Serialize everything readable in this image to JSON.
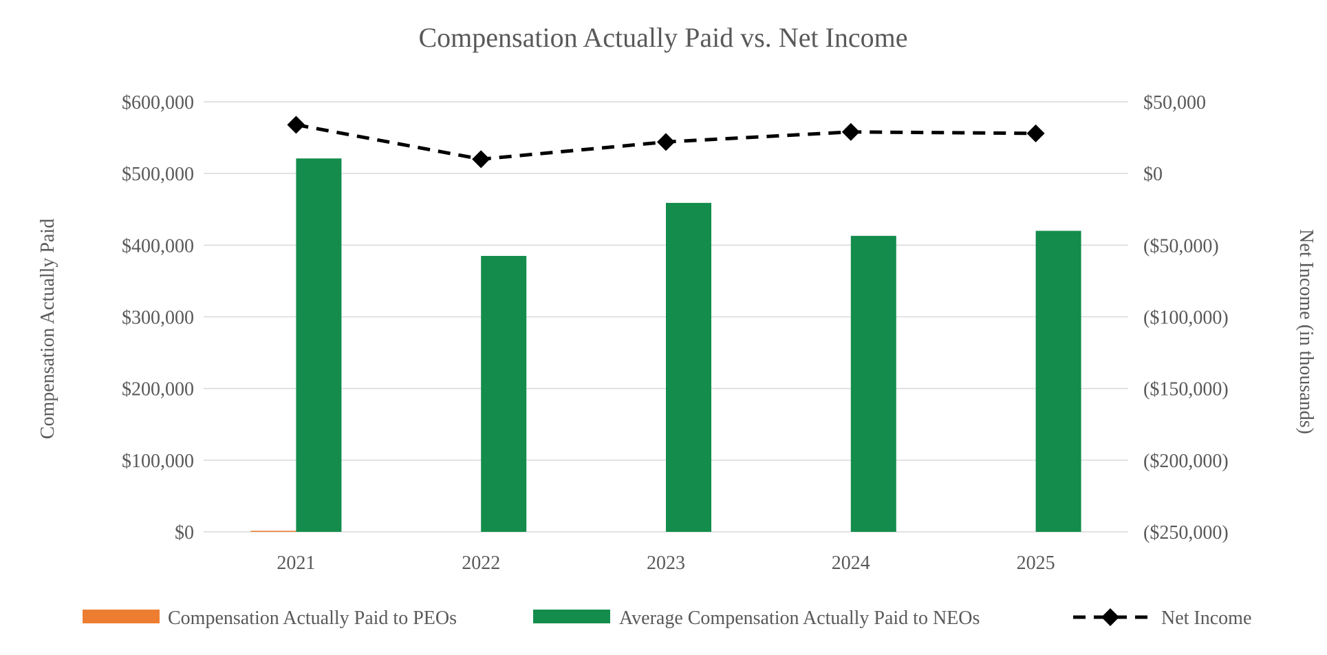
{
  "chart_data": {
    "type": "bar",
    "title": "Compensation Actually Paid vs. Net Income",
    "categories": [
      "2021",
      "2022",
      "2023",
      "2024",
      "2025"
    ],
    "ylabel": "Compensation Actually Paid",
    "y2label": "Net Income (in thousands)",
    "ylim": [
      0,
      600000
    ],
    "y2lim": [
      -250000,
      50000
    ],
    "yticks": [
      "$0",
      "$100,000",
      "$200,000",
      "$300,000",
      "$400,000",
      "$500,000",
      "$600,000"
    ],
    "y2ticks": [
      "($250,000)",
      "($200,000)",
      "($150,000)",
      "($100,000)",
      "($50,000)",
      "$0",
      "$50,000"
    ],
    "grid": true,
    "legend_position": "bottom",
    "series": [
      {
        "name": "Compensation Actually Paid to PEOs",
        "type": "bar",
        "axis": "left",
        "color": "#ed7d31",
        "values": [
          1500,
          0,
          0,
          0,
          0
        ]
      },
      {
        "name": "Average Compensation Actually Paid to NEOs",
        "type": "bar",
        "axis": "left",
        "color": "#138c4c",
        "values": [
          521000,
          385000,
          459000,
          413000,
          420000
        ]
      },
      {
        "name": "Net Income",
        "type": "line",
        "axis": "right",
        "style": "dashed",
        "marker": "diamond",
        "color": "#000000",
        "values": [
          34000,
          10000,
          22000,
          29000,
          28000
        ]
      }
    ]
  }
}
